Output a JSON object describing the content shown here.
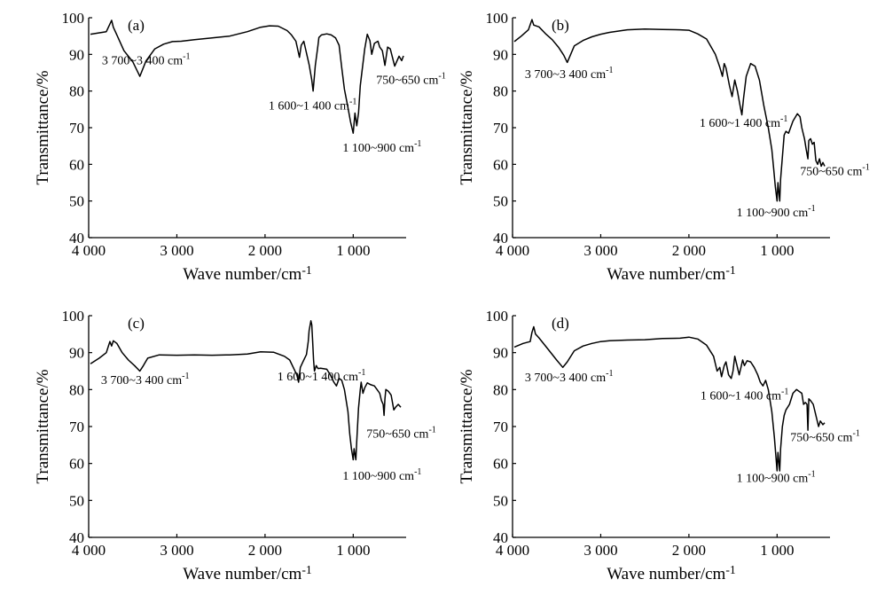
{
  "chart_data": [
    {
      "type": "line",
      "panel": "(a)",
      "xlabel": "Wave number/cm",
      "xlabel_sup": "-1",
      "ylabel": "Transmittance/%",
      "xlim": [
        4000,
        400
      ],
      "ylim": [
        40,
        100
      ],
      "x_ticks": [
        4000,
        3000,
        2000,
        1000
      ],
      "x_tick_labels": [
        "4 000",
        "3 000",
        "2 000",
        "1 000"
      ],
      "y_ticks": [
        40,
        50,
        60,
        70,
        80,
        90,
        100
      ],
      "y_tick_labels": [
        "40",
        "50",
        "60",
        "70",
        "80",
        "90",
        "100"
      ],
      "series": [
        {
          "x": [
            3980,
            3800,
            3740,
            3720,
            3680,
            3600,
            3500,
            3420,
            3350,
            3250,
            3150,
            3050,
            2950,
            2800,
            2600,
            2400,
            2200,
            2050,
            1950,
            1850,
            1750,
            1700,
            1650,
            1610,
            1590,
            1560,
            1500,
            1470,
            1455,
            1430,
            1400,
            1390,
            1360,
            1300,
            1250,
            1200,
            1160,
            1130,
            1100,
            1060,
            1030,
            1000,
            980,
            960,
            940,
            920,
            900,
            870,
            840,
            810,
            790,
            760,
            720,
            700,
            670,
            640,
            610,
            580,
            530,
            480,
            450,
            430
          ],
          "y": [
            95.5,
            96.2,
            99.3,
            97.4,
            95.3,
            91.0,
            88.0,
            84.0,
            88.2,
            91.5,
            92.8,
            93.5,
            93.6,
            94.0,
            94.5,
            95.0,
            96.2,
            97.4,
            97.8,
            97.7,
            96.5,
            95.3,
            93.6,
            89.2,
            92.5,
            93.6,
            87.2,
            83.0,
            80.0,
            87.0,
            92.5,
            94.6,
            95.3,
            95.6,
            95.3,
            94.5,
            92.5,
            86.3,
            80.5,
            75.5,
            71.6,
            68.5,
            74.0,
            70.5,
            74.0,
            81.5,
            85.5,
            91.5,
            95.5,
            93.7,
            90.0,
            93.0,
            93.6,
            92.0,
            91.0,
            87.0,
            92.0,
            91.5,
            86.8,
            89.5,
            88.3,
            89.6
          ]
        }
      ],
      "annotations": [
        {
          "text": "3 700~3 400 cm",
          "sup": "-1",
          "x": 3850,
          "y": 87.3
        },
        {
          "text": "1 600~1 400 cm",
          "sup": "-1",
          "x": 1960,
          "y": 75.0
        },
        {
          "text": "1 100~900 cm",
          "sup": "-1",
          "x": 1120,
          "y": 63.5
        },
        {
          "text": "750~650 cm",
          "sup": "-1",
          "x": 740,
          "y": 82.0
        }
      ]
    },
    {
      "type": "line",
      "panel": "(b)",
      "xlabel": "Wave number/cm",
      "xlabel_sup": "-1",
      "ylabel": "Transmittance/%",
      "xlim": [
        4000,
        400
      ],
      "ylim": [
        40,
        100
      ],
      "x_ticks": [
        4000,
        3000,
        2000,
        1000
      ],
      "x_tick_labels": [
        "4 000",
        "3 000",
        "2 000",
        "1 000"
      ],
      "y_ticks": [
        40,
        50,
        60,
        70,
        80,
        90,
        100
      ],
      "y_tick_labels": [
        "40",
        "50",
        "60",
        "70",
        "80",
        "90",
        "100"
      ],
      "series": [
        {
          "x": [
            3980,
            3900,
            3820,
            3780,
            3760,
            3700,
            3620,
            3550,
            3480,
            3420,
            3380,
            3300,
            3200,
            3100,
            3000,
            2900,
            2700,
            2500,
            2300,
            2100,
            2000,
            1900,
            1800,
            1700,
            1650,
            1620,
            1600,
            1580,
            1540,
            1510,
            1480,
            1450,
            1420,
            1400,
            1380,
            1350,
            1300,
            1250,
            1200,
            1150,
            1100,
            1060,
            1040,
            1020,
            1000,
            990,
            970,
            960,
            940,
            920,
            900,
            870,
            820,
            770,
            740,
            720,
            690,
            670,
            650,
            640,
            620,
            600,
            580,
            560,
            540,
            520,
            500,
            480,
            460
          ],
          "y": [
            93.5,
            95.0,
            96.7,
            99.5,
            98.0,
            97.5,
            95.5,
            94.0,
            92.0,
            89.8,
            87.8,
            92.3,
            93.8,
            94.8,
            95.5,
            96.0,
            96.7,
            96.9,
            96.8,
            96.7,
            96.6,
            95.6,
            94.2,
            90.0,
            86.5,
            84.0,
            87.5,
            86.3,
            81.5,
            78.5,
            83.0,
            80.0,
            76.0,
            73.5,
            78.0,
            84.0,
            87.5,
            86.8,
            83.0,
            76.0,
            70.0,
            64.0,
            59.0,
            54.0,
            50.0,
            55.0,
            50.0,
            56.0,
            62.0,
            68.0,
            69.0,
            68.5,
            71.8,
            73.8,
            73.0,
            70.0,
            67.0,
            64.0,
            61.5,
            66.5,
            67.0,
            65.5,
            66.0,
            61.0,
            60.0,
            61.5,
            59.5,
            60.5,
            59.5
          ]
        }
      ],
      "annotations": [
        {
          "text": "3 700~3 400 cm",
          "sup": "-1",
          "x": 3860,
          "y": 83.5
        },
        {
          "text": "1 600~1 400 cm",
          "sup": "-1",
          "x": 1880,
          "y": 70.3
        },
        {
          "text": "1 100~900 cm",
          "sup": "-1",
          "x": 1460,
          "y": 45.8
        },
        {
          "text": "750~650 cm",
          "sup": "-1",
          "x": 740,
          "y": 57.0
        }
      ]
    },
    {
      "type": "line",
      "panel": "(c)",
      "xlabel": "Wave number/cm",
      "xlabel_sup": "-1",
      "ylabel": "Transmittance/%",
      "xlim": [
        4000,
        400
      ],
      "ylim": [
        40,
        100
      ],
      "x_ticks": [
        4000,
        3000,
        2000,
        1000
      ],
      "x_tick_labels": [
        "4 000",
        "3 000",
        "2 000",
        "1 000"
      ],
      "y_ticks": [
        40,
        50,
        60,
        70,
        80,
        90,
        100
      ],
      "y_tick_labels": [
        "40",
        "50",
        "60",
        "70",
        "80",
        "90",
        "100"
      ],
      "series": [
        {
          "x": [
            3980,
            3880,
            3800,
            3760,
            3740,
            3720,
            3680,
            3620,
            3550,
            3480,
            3420,
            3380,
            3330,
            3200,
            3000,
            2800,
            2600,
            2400,
            2200,
            2050,
            1900,
            1780,
            1720,
            1680,
            1640,
            1620,
            1600,
            1570,
            1530,
            1510,
            1500,
            1480,
            1470,
            1460,
            1450,
            1440,
            1420,
            1400,
            1370,
            1300,
            1260,
            1220,
            1190,
            1160,
            1130,
            1100,
            1060,
            1040,
            1020,
            1000,
            990,
            970,
            960,
            940,
            920,
            910,
            890,
            870,
            840,
            800,
            760,
            730,
            700,
            680,
            660,
            650,
            640,
            630,
            600,
            570,
            540,
            520,
            490,
            460
          ],
          "y": [
            87.0,
            88.5,
            90.0,
            93.0,
            91.8,
            93.2,
            92.5,
            90.0,
            88.0,
            86.5,
            85.0,
            86.5,
            88.5,
            89.4,
            89.3,
            89.4,
            89.3,
            89.4,
            89.6,
            90.2,
            90.1,
            89.0,
            88.0,
            86.0,
            84.0,
            82.0,
            86.0,
            87.5,
            89.5,
            93.0,
            96.0,
            98.6,
            97.5,
            93.0,
            88.0,
            85.0,
            86.5,
            85.7,
            85.8,
            85.5,
            84.0,
            82.0,
            81.0,
            83.0,
            82.5,
            80.0,
            74.0,
            68.0,
            64.0,
            61.0,
            64.0,
            61.0,
            66.0,
            75.0,
            80.0,
            82.0,
            79.0,
            80.5,
            81.8,
            81.3,
            81.0,
            80.0,
            79.0,
            77.0,
            76.0,
            73.0,
            77.5,
            80.0,
            79.5,
            78.5,
            74.5,
            75.2,
            76.0,
            75.2
          ]
        }
      ],
      "annotations": [
        {
          "text": "3 700~3 400 cm",
          "sup": "-1",
          "x": 3860,
          "y": 81.5
        },
        {
          "text": "1 600~1 400 cm",
          "sup": "-1",
          "x": 1860,
          "y": 82.5
        },
        {
          "text": "1 100~900 cm",
          "sup": "-1",
          "x": 1120,
          "y": 55.6
        },
        {
          "text": "750~650 cm",
          "sup": "-1",
          "x": 850,
          "y": 67.0
        }
      ]
    },
    {
      "type": "line",
      "panel": "(d)",
      "xlabel": "Wave number/cm",
      "xlabel_sup": "-1",
      "ylabel": "Transmittance/%",
      "xlim": [
        4000,
        400
      ],
      "ylim": [
        40,
        100
      ],
      "x_ticks": [
        4000,
        3000,
        2000,
        1000
      ],
      "x_tick_labels": [
        "4 000",
        "3 000",
        "2 000",
        "1 000"
      ],
      "y_ticks": [
        40,
        50,
        60,
        70,
        80,
        90,
        100
      ],
      "y_tick_labels": [
        "40",
        "50",
        "60",
        "70",
        "80",
        "90",
        "100"
      ],
      "series": [
        {
          "x": [
            3980,
            3880,
            3800,
            3780,
            3760,
            3740,
            3700,
            3600,
            3500,
            3430,
            3380,
            3300,
            3200,
            3100,
            3000,
            2900,
            2700,
            2500,
            2300,
            2100,
            2000,
            1900,
            1800,
            1720,
            1680,
            1650,
            1630,
            1600,
            1580,
            1550,
            1520,
            1500,
            1480,
            1450,
            1430,
            1410,
            1390,
            1370,
            1340,
            1300,
            1260,
            1220,
            1190,
            1160,
            1130,
            1100,
            1060,
            1030,
            1000,
            990,
            970,
            960,
            940,
            920,
            900,
            860,
            820,
            780,
            750,
            720,
            700,
            680,
            660,
            650,
            640,
            620,
            590,
            560,
            530,
            510,
            480,
            460
          ],
          "y": [
            91.5,
            92.5,
            93.0,
            95.5,
            97.0,
            95.0,
            94.0,
            91.0,
            88.0,
            86.0,
            87.5,
            90.5,
            91.8,
            92.5,
            93.0,
            93.2,
            93.4,
            93.5,
            93.8,
            93.9,
            94.2,
            93.7,
            92.0,
            89.0,
            85.0,
            86.0,
            83.5,
            86.5,
            87.5,
            84.0,
            83.0,
            85.0,
            89.0,
            86.0,
            84.0,
            86.0,
            88.0,
            86.5,
            87.8,
            87.5,
            86.0,
            84.0,
            82.0,
            81.0,
            82.5,
            80.0,
            74.0,
            67.0,
            58.0,
            63.0,
            58.0,
            64.0,
            70.0,
            73.0,
            74.5,
            76.0,
            79.0,
            80.0,
            79.5,
            79.0,
            76.0,
            76.5,
            76.0,
            69.0,
            77.5,
            77.0,
            76.0,
            73.0,
            70.0,
            71.5,
            70.5,
            71.0
          ]
        }
      ],
      "annotations": [
        {
          "text": "3 700~3 400 cm",
          "sup": "-1",
          "x": 3860,
          "y": 82.3
        },
        {
          "text": "1 600~1 400 cm",
          "sup": "-1",
          "x": 1870,
          "y": 77.3
        },
        {
          "text": "1 100~900 cm",
          "sup": "-1",
          "x": 1460,
          "y": 55.0
        },
        {
          "text": "750~650 cm",
          "sup": "-1",
          "x": 850,
          "y": 66.0
        }
      ]
    }
  ]
}
